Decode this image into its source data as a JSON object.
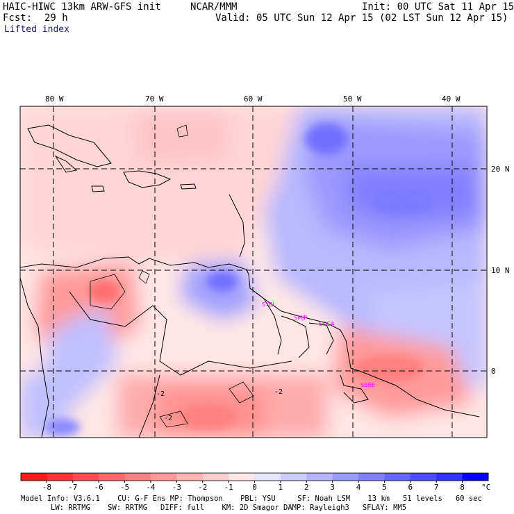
{
  "header": {
    "model_title": "HAIC-HIWC 13km ARW-GFS init",
    "org": "NCAR/MMM",
    "init": "Init: 00 UTC Sat 11 Apr 15",
    "fcst_label": "Fcst:",
    "fcst_value": "29 h",
    "valid": "Valid: 05 UTC Sun 12 Apr 15 (02 LST Sun 12 Apr 15)",
    "field": "Lifted index"
  },
  "axes": {
    "lon_labels": [
      "80 W",
      "70 W",
      "60 W",
      "50 W",
      "40 W"
    ],
    "lat_labels": [
      "20 N",
      "10 N",
      "0"
    ]
  },
  "stations": [
    "SYBL",
    "SMJP",
    "SOCA",
    "SBBE"
  ],
  "colorbar": {
    "ticks": [
      "-8",
      "-7",
      "-6",
      "-5",
      "-4",
      "-3",
      "-2",
      "-1",
      "0",
      "1",
      "2",
      "3",
      "4",
      "5",
      "6",
      "7",
      "8"
    ],
    "unit": "°C",
    "colors": [
      "#ff1a1a",
      "#ff3333",
      "#ff4d4d",
      "#ff6666",
      "#ff8080",
      "#ff9999",
      "#ffb3b3",
      "#ffcccc",
      "#ffe6e6",
      "#e6e6ff",
      "#ccccff",
      "#b3b3ff",
      "#9999ff",
      "#8080ff",
      "#6666ff",
      "#4d4dff",
      "#3333ff",
      "#0000ff"
    ]
  },
  "footer": {
    "line1": "Model Info: V3.6.1    CU: G-F Ens MP: Thompson    PBL: YSU     SF: Noah LSM    13 km   51 levels   60 sec",
    "line2": "LW: RRTMG    SW: RRTMG   DIFF: full    KM: 2D Smagor DAMP: Rayleigh3   SFLAY: MM5"
  }
}
